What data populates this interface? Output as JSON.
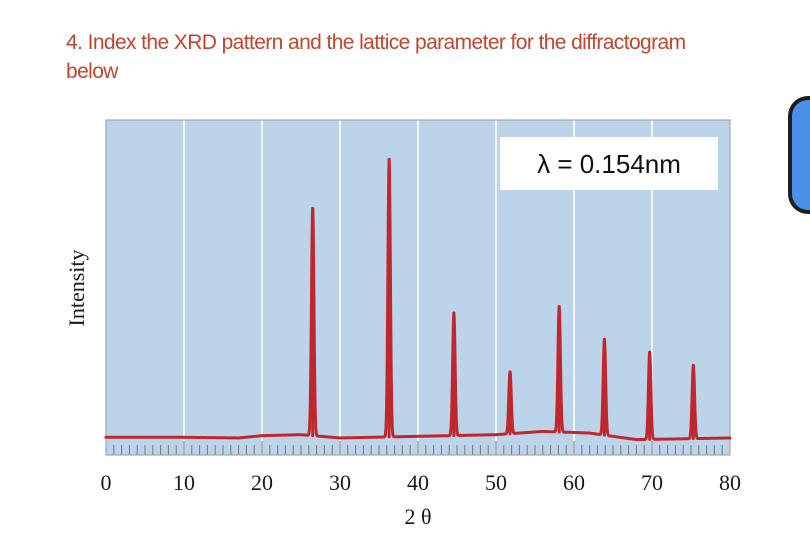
{
  "question": {
    "number": "4.",
    "text": "Index the XRD pattern and the lattice parameter for the diffractogram below"
  },
  "colors": {
    "question_text": "#c2452e",
    "plot_bg": "#bcd4ea",
    "trace": "#c0272d",
    "grid": "#ffffff",
    "side_tab": "#4a8fe8"
  },
  "chart_data": {
    "type": "line",
    "xlabel": "2 θ",
    "ylabel": "Intensity",
    "annotation": "λ = 0.154nm",
    "xlim": [
      0,
      80
    ],
    "ylim": [
      0,
      100
    ],
    "x_ticks": [
      0,
      10,
      20,
      30,
      40,
      50,
      60,
      70,
      80
    ],
    "grid": "vertical lines every 10°",
    "series": [
      {
        "peaks": [
          {
            "two_theta": 26.5,
            "intensity": 80
          },
          {
            "two_theta": 36.3,
            "intensity": 95
          },
          {
            "two_theta": 44.6,
            "intensity": 48
          },
          {
            "two_theta": 51.8,
            "intensity": 30
          },
          {
            "two_theta": 58.1,
            "intensity": 50
          },
          {
            "two_theta": 63.9,
            "intensity": 40
          },
          {
            "two_theta": 69.7,
            "intensity": 36
          },
          {
            "two_theta": 75.3,
            "intensity": 32
          }
        ],
        "baseline": [
          {
            "two_theta": 0,
            "intensity": 10.0
          },
          {
            "two_theta": 10,
            "intensity": 10.0
          },
          {
            "two_theta": 17,
            "intensity": 9.8
          },
          {
            "two_theta": 20,
            "intensity": 10.5
          },
          {
            "two_theta": 25,
            "intensity": 10.8
          },
          {
            "two_theta": 30,
            "intensity": 9.8
          },
          {
            "two_theta": 40,
            "intensity": 10.3
          },
          {
            "two_theta": 50,
            "intensity": 10.8
          },
          {
            "two_theta": 56,
            "intensity": 11.8
          },
          {
            "two_theta": 62,
            "intensity": 11.3
          },
          {
            "two_theta": 68,
            "intensity": 9.3
          },
          {
            "two_theta": 73,
            "intensity": 9.5
          },
          {
            "two_theta": 80,
            "intensity": 9.8
          }
        ]
      }
    ]
  }
}
